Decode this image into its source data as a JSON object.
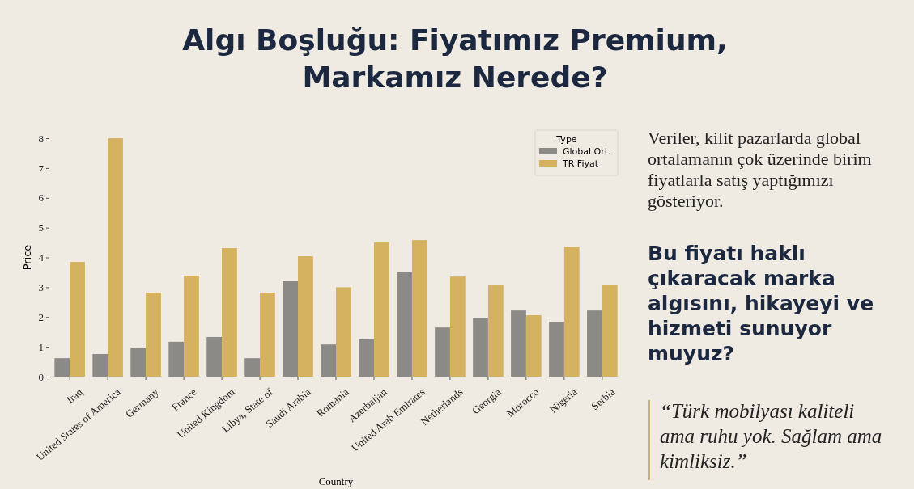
{
  "chart_data": {
    "type": "bar",
    "title": "Algı Boşluğu: Fiyatımız Premium, Markamız Nerede?",
    "xlabel": "Country",
    "ylabel": "Price",
    "legend_title": "Type",
    "legend": "top right",
    "categories": [
      "Iraq",
      "United States of America",
      "Germany",
      "France",
      "United Kingdom",
      "Libya, State of",
      "Saudi Arabia",
      "Romania",
      "Azerbaijan",
      "United Arab Emirates",
      "Netherlands",
      "Georgia",
      "Morocco",
      "Nigeria",
      "Serbia"
    ],
    "series": [
      {
        "name": "Global Ort.",
        "color": "#8c8a87",
        "values": [
          0.62,
          0.76,
          0.95,
          1.17,
          1.33,
          0.62,
          3.2,
          1.08,
          1.25,
          3.5,
          1.65,
          1.98,
          2.22,
          1.84,
          2.22
        ]
      },
      {
        "name": "TR Fiyat",
        "color": "#d4b25f",
        "values": [
          3.85,
          8.0,
          2.82,
          3.39,
          4.31,
          2.82,
          4.04,
          3.0,
          4.5,
          4.58,
          3.36,
          3.09,
          2.06,
          4.36,
          3.09
        ]
      }
    ],
    "ylim": [
      0,
      8.3
    ],
    "yticks": [
      0,
      1,
      2,
      3,
      4,
      5,
      6,
      7,
      8
    ],
    "annotations": [
      "Veriler, kilit pazarlarda global ortalamanın çok üzerinde birim fiyatlarla satış yaptığımızı gösteriyor.",
      "Bu fiyatı haklı çıkaracak marka algısını, hikayeyi ve hizmeti sunuyor muyuz?",
      "“Türk mobilyası kaliteli ama ruhu yok. Sağlam ama kimliksiz.”"
    ]
  }
}
